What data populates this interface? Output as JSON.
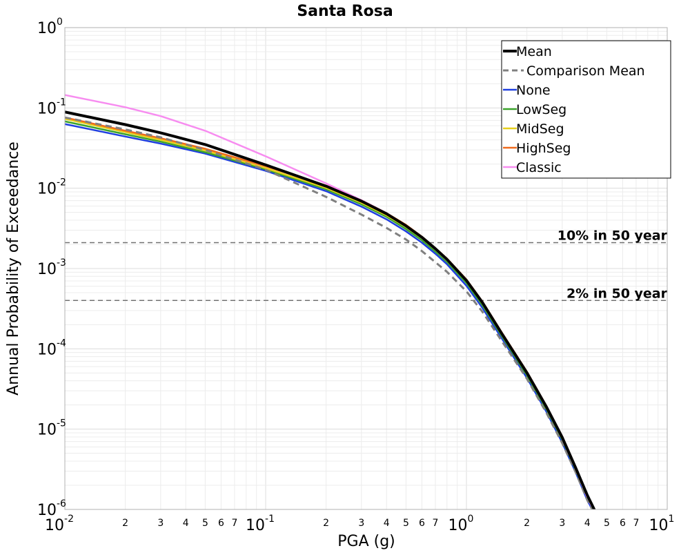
{
  "chart_data": {
    "type": "line",
    "title": "Santa Rosa",
    "xlabel": "PGA (g)",
    "ylabel": "Annual Probability of Exceedance",
    "x_scale": "log",
    "y_scale": "log",
    "xlim": [
      0.01,
      10
    ],
    "ylim": [
      1e-06,
      1
    ],
    "grid": true,
    "legend_position": "top-right",
    "x_decade_ticks": [
      {
        "base": "10",
        "exp": "-2",
        "value": 0.01
      },
      {
        "base": "10",
        "exp": "-1",
        "value": 0.1
      },
      {
        "base": "10",
        "exp": "0",
        "value": 1
      },
      {
        "base": "10",
        "exp": "1",
        "value": 10
      }
    ],
    "x_minor_labels": [
      "2",
      "3",
      "4",
      "5",
      "6",
      "7"
    ],
    "y_decade_ticks": [
      {
        "base": "10",
        "exp": "0",
        "value": 1
      },
      {
        "base": "10",
        "exp": "-1",
        "value": 0.1
      },
      {
        "base": "10",
        "exp": "-2",
        "value": 0.01
      },
      {
        "base": "10",
        "exp": "-3",
        "value": 0.001
      },
      {
        "base": "10",
        "exp": "-4",
        "value": 0.0001
      },
      {
        "base": "10",
        "exp": "-5",
        "value": 1e-05
      },
      {
        "base": "10",
        "exp": "-6",
        "value": 1e-06
      }
    ],
    "reference_lines": [
      {
        "label": "10% in 50 year",
        "y": 0.0021
      },
      {
        "label": "2% in 50 year",
        "y": 0.0004
      }
    ],
    "series": [
      {
        "name": "None",
        "color": "#1f3fe0",
        "dashed": false,
        "width": 2.5,
        "x": [
          0.01,
          0.02,
          0.03,
          0.05,
          0.1,
          0.2,
          0.3,
          0.4,
          0.5,
          0.6,
          0.7,
          0.8,
          1.0,
          1.2,
          1.5,
          2.0,
          2.5,
          3.0,
          3.5,
          4.0,
          4.5
        ],
        "y": [
          0.063,
          0.044,
          0.036,
          0.027,
          0.0165,
          0.0092,
          0.0059,
          0.0041,
          0.0029,
          0.0021,
          0.00153,
          0.00113,
          0.00061,
          0.000325,
          0.000135,
          4.35e-05,
          1.65e-05,
          6.8e-06,
          2.9e-06,
          1.3e-06,
          7.5e-07
        ]
      },
      {
        "name": "LowSeg",
        "color": "#3aa32a",
        "dashed": false,
        "width": 2.5,
        "x": [
          0.01,
          0.02,
          0.03,
          0.05,
          0.1,
          0.2,
          0.3,
          0.4,
          0.5,
          0.6,
          0.7,
          0.8,
          1.0,
          1.2,
          1.5,
          2.0,
          2.5,
          3.0,
          3.5,
          4.0,
          4.5
        ],
        "y": [
          0.068,
          0.047,
          0.038,
          0.028,
          0.0172,
          0.0097,
          0.0063,
          0.0044,
          0.0031,
          0.00225,
          0.00163,
          0.00121,
          0.00066,
          0.00035,
          0.000145,
          4.7e-05,
          1.78e-05,
          7.4e-06,
          3.1e-06,
          1.4e-06,
          7.8e-07
        ]
      },
      {
        "name": "MidSeg",
        "color": "#e6cf1a",
        "dashed": false,
        "width": 2.5,
        "x": [
          0.01,
          0.02,
          0.03,
          0.05,
          0.1,
          0.2,
          0.3,
          0.4,
          0.5,
          0.6,
          0.7,
          0.8,
          1.0,
          1.2,
          1.5,
          2.0,
          2.5,
          3.0,
          3.5,
          4.0,
          4.5
        ],
        "y": [
          0.073,
          0.05,
          0.04,
          0.0295,
          0.0178,
          0.0101,
          0.0066,
          0.0046,
          0.0033,
          0.0024,
          0.00173,
          0.00128,
          0.0007,
          0.00037,
          0.000152,
          4.95e-05,
          1.86e-05,
          7.7e-06,
          3.2e-06,
          1.4e-06,
          8e-07
        ]
      },
      {
        "name": "HighSeg",
        "color": "#f06a1c",
        "dashed": false,
        "width": 2.5,
        "x": [
          0.01,
          0.02,
          0.03,
          0.05,
          0.1,
          0.2,
          0.3,
          0.4,
          0.5,
          0.6,
          0.7,
          0.8,
          1.0,
          1.2,
          1.5,
          2.0,
          2.5,
          3.0,
          3.5,
          4.0,
          4.5
        ],
        "y": [
          0.076,
          0.052,
          0.042,
          0.031,
          0.0188,
          0.0108,
          0.0071,
          0.0049,
          0.0035,
          0.0025,
          0.0018,
          0.00133,
          0.00073,
          0.00039,
          0.00016,
          5.2e-05,
          1.95e-05,
          8.1e-06,
          3.4e-06,
          1.5e-06,
          8.5e-07
        ]
      },
      {
        "name": "Classic",
        "color": "#f78cf0",
        "dashed": false,
        "width": 2.5,
        "x": [
          0.01,
          0.02,
          0.03,
          0.05,
          0.1,
          0.2,
          0.3,
          0.4,
          0.5,
          0.6,
          0.7,
          0.8,
          1.0,
          1.2,
          1.5,
          2.0,
          2.5,
          3.0,
          3.5,
          4.0,
          4.5
        ],
        "y": [
          0.145,
          0.102,
          0.079,
          0.052,
          0.025,
          0.0115,
          0.0071,
          0.0049,
          0.0034,
          0.0024,
          0.00173,
          0.00127,
          0.0007,
          0.00037,
          0.000152,
          4.95e-05,
          1.86e-05,
          7.7e-06,
          3.2e-06,
          1.4e-06,
          8e-07
        ]
      },
      {
        "name": "Comparison Mean",
        "color": "#808080",
        "dashed": true,
        "width": 3,
        "x": [
          0.01,
          0.02,
          0.03,
          0.05,
          0.1,
          0.2,
          0.3,
          0.4,
          0.5,
          0.6,
          0.7,
          0.8,
          1.0,
          1.2,
          1.5,
          2.0,
          2.5,
          3.0,
          3.5,
          4.0,
          4.5
        ],
        "y": [
          0.076,
          0.054,
          0.043,
          0.03,
          0.017,
          0.0078,
          0.0047,
          0.0032,
          0.0023,
          0.00165,
          0.0012,
          0.00091,
          0.00052,
          0.00029,
          0.000125,
          4.25e-05,
          1.6e-05,
          6.7e-06,
          2.9e-06,
          1.3e-06,
          7.5e-07
        ]
      },
      {
        "name": "Mean",
        "color": "#000000",
        "dashed": false,
        "width": 4,
        "x": [
          0.01,
          0.02,
          0.03,
          0.05,
          0.1,
          0.2,
          0.3,
          0.4,
          0.5,
          0.6,
          0.7,
          0.8,
          1.0,
          1.2,
          1.5,
          2.0,
          2.5,
          3.0,
          3.5,
          4.0,
          4.5
        ],
        "y": [
          0.089,
          0.062,
          0.049,
          0.035,
          0.0195,
          0.0106,
          0.0069,
          0.0048,
          0.0034,
          0.00245,
          0.00177,
          0.0013,
          0.00071,
          0.00038,
          0.000155,
          5.05e-05,
          1.9e-05,
          7.9e-06,
          3.3e-06,
          1.5e-06,
          8.2e-07
        ]
      }
    ],
    "legend_order": [
      "Mean",
      "Comparison Mean",
      "None",
      "LowSeg",
      "MidSeg",
      "HighSeg",
      "Classic"
    ]
  }
}
